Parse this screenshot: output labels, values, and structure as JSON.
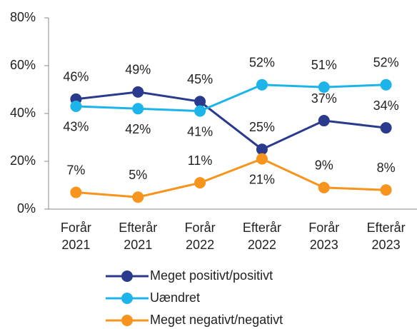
{
  "chart_data": {
    "type": "line",
    "categories": [
      "Forår 2021",
      "Efterår 2021",
      "Forår 2022",
      "Efterår 2022",
      "Forår 2023",
      "Efterår 2023"
    ],
    "series": [
      {
        "name": "Meget positivt/positivt",
        "color": "#2a3a8c",
        "values": [
          46,
          49,
          45,
          25,
          37,
          34
        ],
        "value_labels": [
          "46%",
          "49%",
          "45%",
          "25%",
          "37%",
          "34%"
        ]
      },
      {
        "name": "Uændret",
        "color": "#1db4ea",
        "values": [
          43,
          42,
          41,
          52,
          51,
          52
        ],
        "value_labels": [
          "43%",
          "42%",
          "41%",
          "52%",
          "51%",
          "52%"
        ]
      },
      {
        "name": "Meget negativt/negativt",
        "color": "#f7941d",
        "values": [
          7,
          5,
          11,
          21,
          9,
          8
        ],
        "value_labels": [
          "7%",
          "5%",
          "11%",
          "21%",
          "9%",
          "8%"
        ]
      }
    ],
    "ylim": [
      0,
      80
    ],
    "yticks": [
      {
        "value": 0,
        "label": "0%"
      },
      {
        "value": 20,
        "label": "20%"
      },
      {
        "value": 40,
        "label": "40%"
      },
      {
        "value": 60,
        "label": "60%"
      },
      {
        "value": 80,
        "label": "80%"
      }
    ],
    "legend": "bottom"
  }
}
